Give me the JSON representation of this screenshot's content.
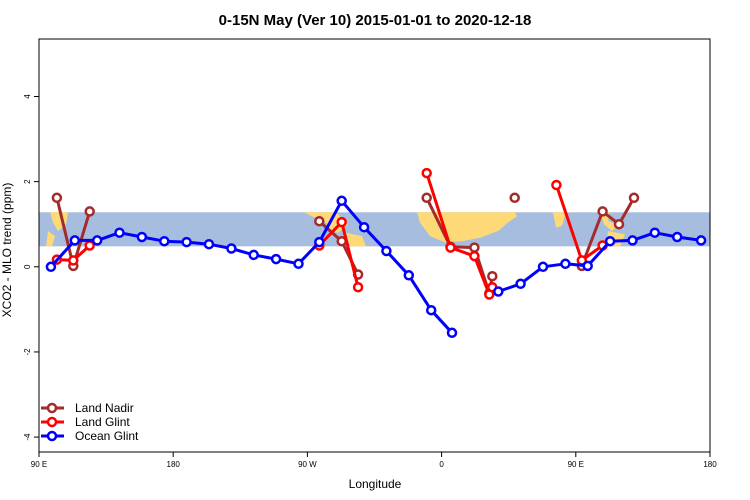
{
  "chart_data": {
    "type": "line",
    "title": "0-15N May (Ver 10)   2015-01-01 to 2020-12-18",
    "xlabel": "Longitude",
    "ylabel": "XCO2 - MLO trend (ppm)",
    "x_axis": {
      "range": [
        90,
        540
      ],
      "ticks": [
        {
          "value": 90,
          "label": "90 E"
        },
        {
          "value": 180,
          "label": "180"
        },
        {
          "value": 270,
          "label": "90 W"
        },
        {
          "value": 360,
          "label": "0"
        },
        {
          "value": 450,
          "label": "90 E"
        },
        {
          "value": 540,
          "label": "180"
        }
      ]
    },
    "y_axis": {
      "range": [
        -4.35,
        5.35
      ],
      "ticks": [
        {
          "value": -4,
          "label": "-4"
        },
        {
          "value": -2,
          "label": "-2"
        },
        {
          "value": 0,
          "label": "0"
        },
        {
          "value": 2,
          "label": "2"
        },
        {
          "value": 4,
          "label": "4"
        }
      ]
    },
    "grid": false,
    "legend_position": "bottom-left",
    "background_band": {
      "y_min": 0.48,
      "y_max": 1.28,
      "color": "#a7bddf",
      "land_color": "#fed978"
    },
    "series": [
      {
        "name": "Land Nadir",
        "color": "#a52a2a",
        "x": [
          102,
          113,
          124,
          278,
          293,
          304,
          350,
          366,
          382,
          392,
          394,
          409,
          454,
          468,
          479,
          489
        ],
        "y": [
          1.62,
          0.02,
          1.3,
          1.07,
          0.6,
          -0.18,
          1.62,
          0.47,
          0.45,
          -0.62,
          -0.22,
          1.62,
          0.02,
          1.3,
          1.0,
          1.62
        ],
        "segments": [
          [
            0,
            2
          ],
          [
            3,
            5
          ],
          [
            6,
            10
          ],
          [
            11,
            11
          ],
          [
            12,
            15
          ]
        ]
      },
      {
        "name": "Land Glint",
        "color": "#ff0000",
        "x": [
          102,
          113,
          124,
          278,
          293,
          304,
          350,
          366,
          382,
          392,
          394,
          437,
          454,
          468
        ],
        "y": [
          0.17,
          0.15,
          0.5,
          0.5,
          1.05,
          -0.48,
          2.2,
          0.45,
          0.25,
          -0.65,
          -0.48,
          1.92,
          0.15,
          0.5
        ],
        "segments": [
          [
            0,
            2
          ],
          [
            3,
            5
          ],
          [
            6,
            10
          ],
          [
            11,
            13
          ]
        ]
      },
      {
        "name": "Ocean Glint",
        "color": "#0000ff",
        "x": [
          98,
          114,
          129,
          144,
          159,
          174,
          189,
          204,
          219,
          234,
          249,
          264,
          278,
          293,
          308,
          323,
          338,
          353,
          367,
          398,
          413,
          428,
          443,
          458,
          473,
          488,
          503,
          518,
          534
        ],
        "y": [
          0.0,
          0.62,
          0.62,
          0.8,
          0.7,
          0.6,
          0.58,
          0.53,
          0.43,
          0.28,
          0.18,
          0.07,
          0.58,
          1.55,
          0.93,
          0.37,
          -0.2,
          -1.02,
          -1.55,
          -0.58,
          -0.4,
          0.0,
          0.07,
          0.02,
          0.6,
          0.62,
          0.8,
          0.7,
          0.62
        ],
        "segments": [
          [
            0,
            18
          ],
          [
            19,
            28
          ]
        ]
      }
    ]
  }
}
